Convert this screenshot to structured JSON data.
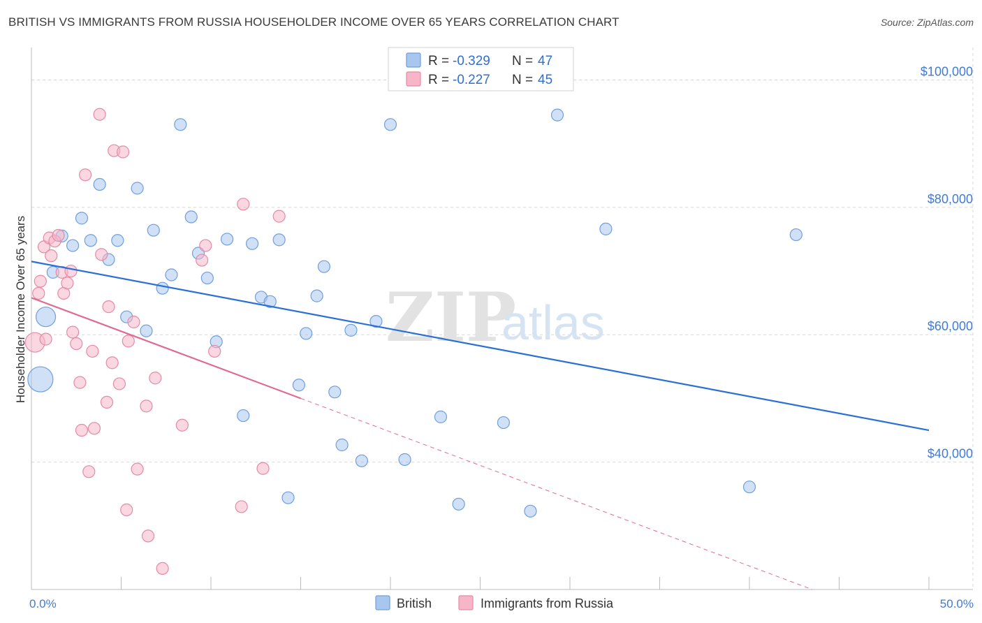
{
  "title": "BRITISH VS IMMIGRANTS FROM RUSSIA HOUSEHOLDER INCOME OVER 65 YEARS CORRELATION CHART",
  "source": "Source: ZipAtlas.com",
  "watermark": {
    "zip": "ZIP",
    "atlas": "atlas"
  },
  "legend": {
    "r_label": "R =",
    "n_label": "N =",
    "entries": [
      {
        "r": "-0.329",
        "n": "47"
      },
      {
        "r": "-0.227",
        "n": "45"
      }
    ]
  },
  "colors": {
    "british_fill": "#a9c6ee",
    "british_stroke": "#6f9fde",
    "british_line": "#2a6fd6",
    "russia_fill": "#f6b6c8",
    "russia_stroke": "#e58aa6",
    "russia_line": "#e06b92",
    "grid": "#d8d8d8",
    "tick_text": "#3f7bd6"
  },
  "chart_data": {
    "type": "scatter",
    "title": "BRITISH VS IMMIGRANTS FROM RUSSIA HOUSEHOLDER INCOME OVER 65 YEARS CORRELATION CHART",
    "xlabel": "",
    "ylabel": "Householder Income Over 65 years",
    "xlim": [
      0,
      50
    ],
    "ylim": [
      20000,
      104000
    ],
    "x_ticks": [
      {
        "value": 0,
        "label": "0.0%"
      },
      {
        "value": 50,
        "label": "50.0%"
      }
    ],
    "y_ticks": [
      {
        "value": 40000,
        "label": "$40,000"
      },
      {
        "value": 60000,
        "label": "$60,000"
      },
      {
        "value": 80000,
        "label": "$80,000"
      },
      {
        "value": 100000,
        "label": "$100,000"
      }
    ],
    "grid": true,
    "legend_position": "top-center",
    "series": [
      {
        "name": "British",
        "r": -0.329,
        "n": 47,
        "trend": {
          "x0": 0,
          "y0": 71500,
          "x1": 50,
          "y1": 45000,
          "solid_to": 50
        },
        "points": [
          {
            "x": 0.5,
            "y": 53000,
            "s": 3
          },
          {
            "x": 0.8,
            "y": 62800,
            "s": 2
          },
          {
            "x": 1.2,
            "y": 69800,
            "s": 1
          },
          {
            "x": 1.7,
            "y": 75500,
            "s": 1
          },
          {
            "x": 2.3,
            "y": 74000,
            "s": 1
          },
          {
            "x": 2.8,
            "y": 78300,
            "s": 1
          },
          {
            "x": 3.3,
            "y": 74800,
            "s": 1
          },
          {
            "x": 3.8,
            "y": 83600,
            "s": 1
          },
          {
            "x": 4.3,
            "y": 71800,
            "s": 1
          },
          {
            "x": 4.8,
            "y": 74800,
            "s": 1
          },
          {
            "x": 5.3,
            "y": 62800,
            "s": 1
          },
          {
            "x": 5.9,
            "y": 83000,
            "s": 1
          },
          {
            "x": 6.4,
            "y": 60600,
            "s": 1
          },
          {
            "x": 6.8,
            "y": 76400,
            "s": 1
          },
          {
            "x": 7.3,
            "y": 67300,
            "s": 1
          },
          {
            "x": 7.8,
            "y": 69400,
            "s": 1
          },
          {
            "x": 8.3,
            "y": 93000,
            "s": 1
          },
          {
            "x": 8.9,
            "y": 78500,
            "s": 1
          },
          {
            "x": 9.3,
            "y": 72800,
            "s": 1
          },
          {
            "x": 9.8,
            "y": 68900,
            "s": 1
          },
          {
            "x": 10.3,
            "y": 58900,
            "s": 1
          },
          {
            "x": 10.9,
            "y": 75000,
            "s": 1
          },
          {
            "x": 11.8,
            "y": 47300,
            "s": 1
          },
          {
            "x": 12.3,
            "y": 74300,
            "s": 1
          },
          {
            "x": 12.8,
            "y": 65900,
            "s": 1
          },
          {
            "x": 13.3,
            "y": 65200,
            "s": 1
          },
          {
            "x": 13.8,
            "y": 74900,
            "s": 1
          },
          {
            "x": 14.3,
            "y": 34400,
            "s": 1
          },
          {
            "x": 14.9,
            "y": 52100,
            "s": 1
          },
          {
            "x": 15.3,
            "y": 60200,
            "s": 1
          },
          {
            "x": 15.9,
            "y": 66100,
            "s": 1
          },
          {
            "x": 16.3,
            "y": 70700,
            "s": 1
          },
          {
            "x": 16.9,
            "y": 51000,
            "s": 1
          },
          {
            "x": 17.3,
            "y": 42700,
            "s": 1
          },
          {
            "x": 17.8,
            "y": 60700,
            "s": 1
          },
          {
            "x": 18.4,
            "y": 40200,
            "s": 1
          },
          {
            "x": 19.2,
            "y": 62100,
            "s": 1
          },
          {
            "x": 20.0,
            "y": 93000,
            "s": 1
          },
          {
            "x": 20.8,
            "y": 40400,
            "s": 1
          },
          {
            "x": 22.8,
            "y": 47100,
            "s": 1
          },
          {
            "x": 23.8,
            "y": 33400,
            "s": 1
          },
          {
            "x": 26.3,
            "y": 46200,
            "s": 1
          },
          {
            "x": 27.8,
            "y": 32300,
            "s": 1
          },
          {
            "x": 29.3,
            "y": 94500,
            "s": 1
          },
          {
            "x": 32.0,
            "y": 76600,
            "s": 1
          },
          {
            "x": 40.0,
            "y": 36100,
            "s": 1
          },
          {
            "x": 42.6,
            "y": 75700,
            "s": 1
          }
        ]
      },
      {
        "name": "Immigrants from Russia",
        "r": -0.227,
        "n": 45,
        "trend": {
          "x0": 0,
          "y0": 65800,
          "x1": 43.5,
          "y1": 20000,
          "solid_to": 15
        },
        "points": [
          {
            "x": 0.2,
            "y": 58800,
            "s": 2
          },
          {
            "x": 0.4,
            "y": 66500,
            "s": 1
          },
          {
            "x": 0.5,
            "y": 68400,
            "s": 1
          },
          {
            "x": 0.7,
            "y": 73800,
            "s": 1
          },
          {
            "x": 0.8,
            "y": 59300,
            "s": 1
          },
          {
            "x": 1.0,
            "y": 75200,
            "s": 1
          },
          {
            "x": 1.1,
            "y": 72400,
            "s": 1
          },
          {
            "x": 1.3,
            "y": 74700,
            "s": 1
          },
          {
            "x": 1.5,
            "y": 75600,
            "s": 1
          },
          {
            "x": 1.7,
            "y": 69800,
            "s": 1
          },
          {
            "x": 1.8,
            "y": 66500,
            "s": 1
          },
          {
            "x": 2.0,
            "y": 68100,
            "s": 1
          },
          {
            "x": 2.2,
            "y": 70000,
            "s": 1
          },
          {
            "x": 2.3,
            "y": 60400,
            "s": 1
          },
          {
            "x": 2.5,
            "y": 58600,
            "s": 1
          },
          {
            "x": 2.7,
            "y": 52500,
            "s": 1
          },
          {
            "x": 2.8,
            "y": 45000,
            "s": 1
          },
          {
            "x": 3.0,
            "y": 85100,
            "s": 1
          },
          {
            "x": 3.2,
            "y": 38500,
            "s": 1
          },
          {
            "x": 3.4,
            "y": 57400,
            "s": 1
          },
          {
            "x": 3.5,
            "y": 45300,
            "s": 1
          },
          {
            "x": 3.8,
            "y": 94600,
            "s": 1
          },
          {
            "x": 3.9,
            "y": 72600,
            "s": 1
          },
          {
            "x": 4.2,
            "y": 49400,
            "s": 1
          },
          {
            "x": 4.3,
            "y": 64400,
            "s": 1
          },
          {
            "x": 4.5,
            "y": 55600,
            "s": 1
          },
          {
            "x": 4.6,
            "y": 88900,
            "s": 1
          },
          {
            "x": 4.9,
            "y": 52300,
            "s": 1
          },
          {
            "x": 5.1,
            "y": 88700,
            "s": 1
          },
          {
            "x": 5.3,
            "y": 32500,
            "s": 1
          },
          {
            "x": 5.4,
            "y": 59000,
            "s": 1
          },
          {
            "x": 5.7,
            "y": 62000,
            "s": 1
          },
          {
            "x": 5.9,
            "y": 38900,
            "s": 1
          },
          {
            "x": 6.4,
            "y": 48800,
            "s": 1
          },
          {
            "x": 6.5,
            "y": 28400,
            "s": 1
          },
          {
            "x": 6.9,
            "y": 53200,
            "s": 1
          },
          {
            "x": 7.3,
            "y": 23300,
            "s": 1
          },
          {
            "x": 8.4,
            "y": 45800,
            "s": 1
          },
          {
            "x": 9.5,
            "y": 71700,
            "s": 1
          },
          {
            "x": 9.7,
            "y": 74000,
            "s": 1
          },
          {
            "x": 10.2,
            "y": 57400,
            "s": 1
          },
          {
            "x": 11.7,
            "y": 33000,
            "s": 1
          },
          {
            "x": 11.8,
            "y": 80500,
            "s": 1
          },
          {
            "x": 12.9,
            "y": 39000,
            "s": 1
          },
          {
            "x": 13.8,
            "y": 78600,
            "s": 1
          }
        ]
      }
    ]
  }
}
